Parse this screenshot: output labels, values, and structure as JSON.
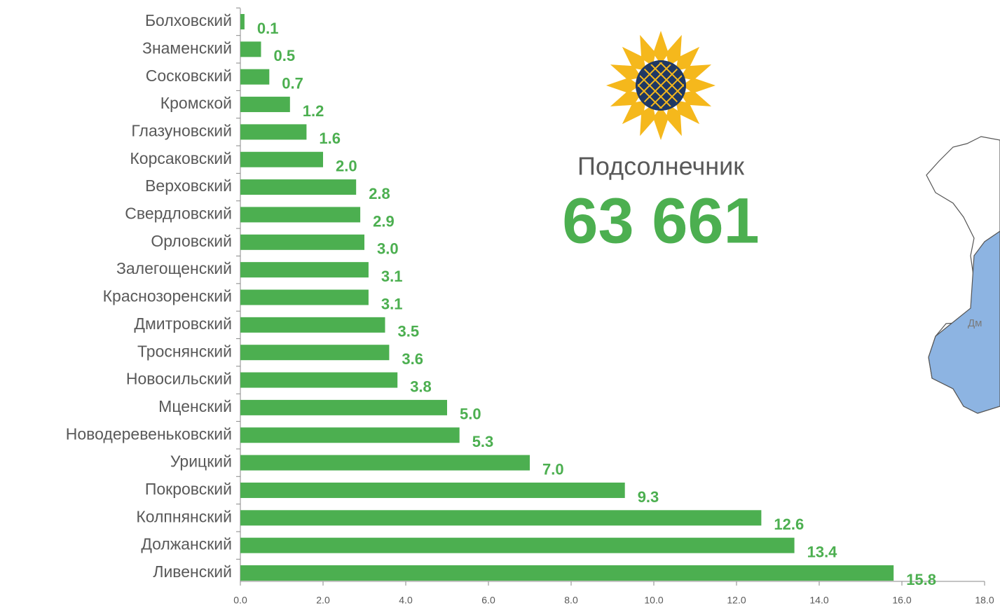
{
  "chart_data": {
    "type": "bar",
    "orientation": "horizontal",
    "color": "#4caf50",
    "categories": [
      "Болховский",
      "Знаменский",
      "Сосковский",
      "Кромской",
      "Глазуновский",
      "Корсаковский",
      "Верховский",
      "Свердловский",
      "Орловский",
      "Залегощенский",
      "Краснозоренский",
      "Дмитровский",
      "Троснянский",
      "Новосильский",
      "Мценский",
      "Новодеревеньковский",
      "Урицкий",
      "Покровский",
      "Колпнянский",
      "Должанский",
      "Ливенский"
    ],
    "values": [
      0.1,
      0.5,
      0.7,
      1.2,
      1.6,
      2.0,
      2.8,
      2.9,
      3.0,
      3.1,
      3.1,
      3.5,
      3.6,
      3.8,
      5.0,
      5.3,
      7.0,
      9.3,
      12.6,
      13.4,
      15.8
    ],
    "value_labels": [
      "0.1",
      "0.5",
      "0.7",
      "1.2",
      "1.6",
      "2.0",
      "2.8",
      "2.9",
      "3.0",
      "3.1",
      "3.1",
      "3.5",
      "3.6",
      "3.8",
      "5.0",
      "5.3",
      "7.0",
      "9.3",
      "12.6",
      "13.4",
      "15.8"
    ],
    "xlim": [
      0,
      18
    ],
    "xticks": [
      {
        "value": 0,
        "label": "0.0"
      },
      {
        "value": 2,
        "label": "2.0"
      },
      {
        "value": 4,
        "label": "4.0"
      },
      {
        "value": 6,
        "label": "6.0"
      },
      {
        "value": 8,
        "label": "8.0"
      },
      {
        "value": 10,
        "label": "10.0"
      },
      {
        "value": 12,
        "label": "12.0"
      },
      {
        "value": 14,
        "label": "14.0"
      },
      {
        "value": 16,
        "label": "16.0"
      },
      {
        "value": 18,
        "label": "18.0"
      }
    ],
    "crop_name": "Подсолнечник",
    "total": "63 661",
    "map_label": "Дм"
  }
}
